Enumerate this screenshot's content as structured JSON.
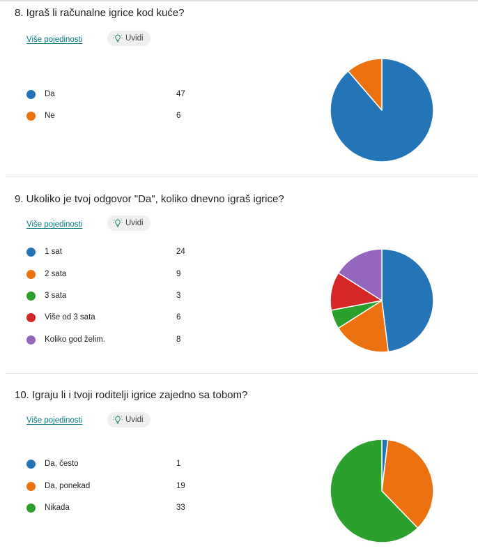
{
  "questions": [
    {
      "title": "8.  Igraš li računalne igrice kod kuće?",
      "details_link": "Više pojedinosti",
      "insights_label": "Uvidi",
      "options": [
        {
          "label": "Da",
          "count": "47",
          "color": "#2375b7"
        },
        {
          "label": "Ne",
          "count": "6",
          "color": "#ec7211"
        }
      ]
    },
    {
      "title": "9.  Ukoliko je tvoj odgovor \"Da\", koliko dnevno igraš igrice?",
      "details_link": "Više pojedinosti",
      "insights_label": "Uvidi",
      "options": [
        {
          "label": "1 sat",
          "count": "24",
          "color": "#2375b7"
        },
        {
          "label": "2 sata",
          "count": "9",
          "color": "#ec7211"
        },
        {
          "label": "3 sata",
          "count": "3",
          "color": "#2ca02c"
        },
        {
          "label": "Više od 3 sata",
          "count": "6",
          "color": "#d62728"
        },
        {
          "label": "Koliko god želim.",
          "count": "8",
          "color": "#9467bd"
        }
      ]
    },
    {
      "title": "10.  Igraju li i tvoji roditelji igrice zajedno sa tobom?",
      "details_link": "Više pojedinosti",
      "insights_label": "Uvidi",
      "options": [
        {
          "label": "Da, često",
          "count": "1",
          "color": "#2375b7"
        },
        {
          "label": "Da, ponekad",
          "count": "19",
          "color": "#ec7211"
        },
        {
          "label": "Nikada",
          "count": "33",
          "color": "#2ca02c"
        }
      ]
    }
  ],
  "chart_data": [
    {
      "type": "pie",
      "categories": [
        "Da",
        "Ne"
      ],
      "values": [
        47,
        6
      ]
    },
    {
      "type": "pie",
      "categories": [
        "1 sat",
        "2 sata",
        "3 sata",
        "Više od 3 sata",
        "Koliko god želim."
      ],
      "values": [
        24,
        9,
        3,
        6,
        8
      ]
    },
    {
      "type": "pie",
      "categories": [
        "Da, često",
        "Da, ponekad",
        "Nikada"
      ],
      "values": [
        1,
        19,
        33
      ]
    }
  ]
}
